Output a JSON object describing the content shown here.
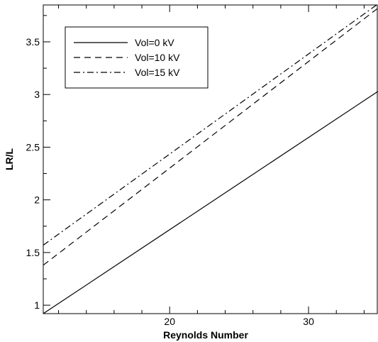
{
  "chart_data": {
    "type": "line",
    "title": "",
    "xlabel": "Reynolds Number",
    "ylabel": "LR/L",
    "xlim": [
      10.9,
      35
    ],
    "ylim": [
      0.92,
      3.85
    ],
    "x_ticks": [
      20,
      30
    ],
    "x_tick_labels": [
      "20",
      "30"
    ],
    "x_minor_ticks": [
      12,
      14,
      16,
      18,
      22,
      24,
      26,
      28,
      32,
      34
    ],
    "y_ticks": [
      1,
      1.5,
      2,
      2.5,
      3,
      3.5
    ],
    "y_tick_labels": [
      "1",
      "1.5",
      "2",
      "2.5",
      "3",
      "3.5"
    ],
    "y_minor_ticks": [
      1.25,
      1.75,
      2.25,
      2.75,
      3.25,
      3.75
    ],
    "grid": false,
    "legend_position": "top-left",
    "series": [
      {
        "name": "Vol=0 kV",
        "style": "solid",
        "color": "#000000",
        "x": [
          10.9,
          35
        ],
        "y": [
          0.92,
          3.03
        ]
      },
      {
        "name": "Vol=10 kV",
        "style": "dashed",
        "color": "#000000",
        "x": [
          10.9,
          35
        ],
        "y": [
          1.38,
          3.82
        ]
      },
      {
        "name": "Vol=15 kV",
        "style": "dash-dot",
        "color": "#000000",
        "x": [
          10.9,
          35
        ],
        "y": [
          1.57,
          3.86
        ]
      }
    ]
  }
}
